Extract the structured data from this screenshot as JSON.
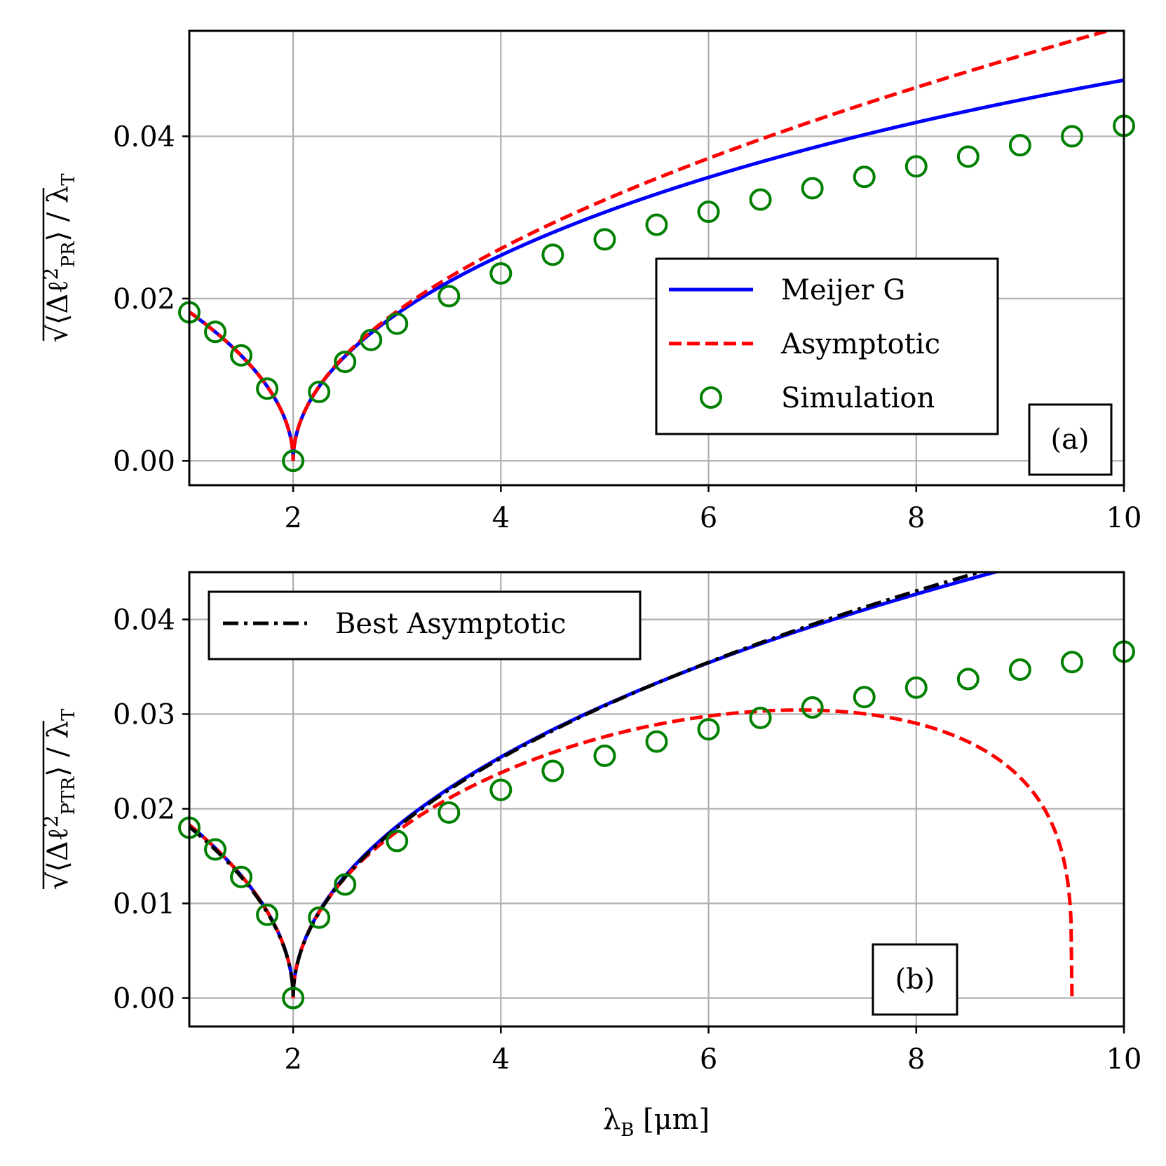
{
  "chart_data": [
    {
      "type": "line",
      "panel": "(a)",
      "ylabel_html": "√⟨Δℓ²_PR⟩ / λ_T",
      "ylabel_sub": "PR",
      "ylabel_denominator": "λ",
      "ylabel_denominator_sub": "T",
      "xlim": [
        1,
        10
      ],
      "ylim": [
        -0.003,
        0.053
      ],
      "xticks": [
        2,
        4,
        6,
        8,
        10
      ],
      "yticks": [
        0.0,
        0.02,
        0.04
      ],
      "ytick_labels": [
        "0.00",
        "0.02",
        "0.04"
      ],
      "xtick_labels": [
        "2",
        "4",
        "6",
        "8",
        "10"
      ],
      "grid": true,
      "legend_position": "lower-right",
      "legend": [
        {
          "name": "Meijer G",
          "style": "solid",
          "color": "#0000ff"
        },
        {
          "name": "Asymptotic",
          "style": "dashed",
          "color": "#ff0000"
        },
        {
          "name": "Simulation",
          "style": "circle-marker",
          "color": "#008000"
        }
      ],
      "series": [
        {
          "name": "Meijer G",
          "coef": 0.01835,
          "exponent": 0.5
        },
        {
          "name": "Asymptotic",
          "coef": 0.01835,
          "exponent": 0.5,
          "growth": 0.092
        },
        {
          "name": "Simulation",
          "x": [
            1,
            1.25,
            1.5,
            1.75,
            2,
            2.25,
            2.5,
            2.75,
            3,
            3.5,
            4,
            4.5,
            5,
            5.5,
            6,
            6.5,
            7,
            7.5,
            8,
            8.5,
            9,
            9.5,
            10
          ],
          "y": [
            0.0183,
            0.0159,
            0.013,
            0.0089,
            0.0,
            0.0085,
            0.0122,
            0.0149,
            0.0169,
            0.0203,
            0.0231,
            0.0254,
            0.0273,
            0.0291,
            0.0307,
            0.0322,
            0.0336,
            0.035,
            0.0363,
            0.0375,
            0.0389,
            0.04,
            0.0413
          ]
        }
      ]
    },
    {
      "type": "line",
      "panel": "(b)",
      "ylabel_sub": "PTR",
      "ylabel_denominator": "λ",
      "ylabel_denominator_sub": "T",
      "xlabel": "λ",
      "xlabel_sub": "B",
      "xlabel_unit": "[μm]",
      "xlim": [
        1,
        10
      ],
      "ylim": [
        -0.003,
        0.045
      ],
      "xticks": [
        2,
        4,
        6,
        8,
        10
      ],
      "yticks": [
        0.0,
        0.01,
        0.02,
        0.03,
        0.04
      ],
      "ytick_labels": [
        "0.00",
        "0.01",
        "0.02",
        "0.03",
        "0.04"
      ],
      "xtick_labels": [
        "2",
        "4",
        "6",
        "8",
        "10"
      ],
      "grid": true,
      "legend_position": "top-left",
      "legend": [
        {
          "name": "Best Asymptotic",
          "style": "dashdot",
          "color": "#000000"
        }
      ],
      "series": [
        {
          "name": "Meijer G",
          "coef": 0.0183,
          "exponent": 0.5
        },
        {
          "name": "Best Asymptotic",
          "coef": 0.0181,
          "exponent": 0.5
        },
        {
          "name": "Asymptotic",
          "coef": 0.0183,
          "exponent": 0.5,
          "cutoff": 9.5,
          "damping": 0.27
        },
        {
          "name": "Simulation",
          "x": [
            1,
            1.25,
            1.5,
            1.75,
            2,
            2.25,
            2.5,
            3,
            3.5,
            4,
            4.5,
            5,
            5.5,
            6,
            6.5,
            7,
            7.5,
            8,
            8.5,
            9,
            9.5,
            10
          ],
          "y": [
            0.018,
            0.0157,
            0.0128,
            0.0088,
            0.0,
            0.0085,
            0.012,
            0.0166,
            0.0196,
            0.022,
            0.024,
            0.0256,
            0.0271,
            0.0284,
            0.0296,
            0.0307,
            0.0318,
            0.0328,
            0.0337,
            0.0347,
            0.0355,
            0.0366
          ]
        }
      ]
    }
  ]
}
